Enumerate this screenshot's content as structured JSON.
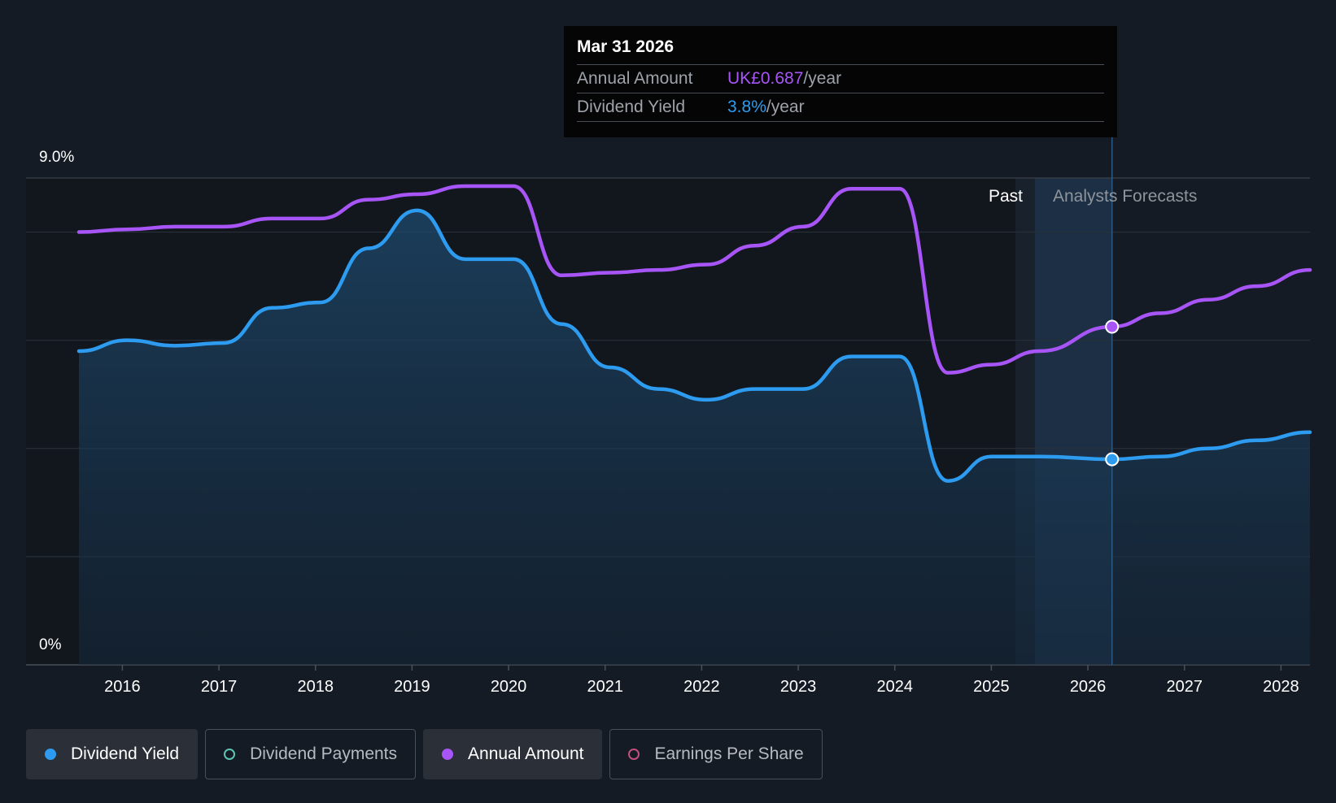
{
  "tooltip": {
    "date": "Mar 31 2026",
    "rows": [
      {
        "label": "Annual Amount",
        "value": "UK£0.687",
        "suffix": "/year",
        "color": "#a855f7"
      },
      {
        "label": "Dividend Yield",
        "value": "3.8%",
        "suffix": "/year",
        "color": "#2d9cf0"
      }
    ]
  },
  "zones": {
    "past": "Past",
    "forecast": "Analysts Forecasts"
  },
  "legend": [
    {
      "label": "Dividend Yield",
      "color": "#2d9cf0",
      "active": true,
      "filled": true
    },
    {
      "label": "Dividend Payments",
      "color": "#5ec4b6",
      "active": false,
      "filled": false
    },
    {
      "label": "Annual Amount",
      "color": "#a855f7",
      "active": true,
      "filled": true
    },
    {
      "label": "Earnings Per Share",
      "color": "#c2507e",
      "active": false,
      "filled": false
    }
  ],
  "chart_data": {
    "type": "line",
    "y_axis_labels": [
      "9.0%",
      "0%"
    ],
    "ylim": [
      0,
      9.0
    ],
    "xlim": [
      2015.55,
      2028.3
    ],
    "x_ticks": [
      "2016",
      "2017",
      "2018",
      "2019",
      "2020",
      "2021",
      "2022",
      "2023",
      "2024",
      "2025",
      "2026",
      "2027",
      "2028"
    ],
    "grid": true,
    "past_end": 2025.25,
    "forecast_start": 2025.45,
    "tooltip_x": 2026.25,
    "series": [
      {
        "name": "Dividend Yield",
        "color": "#2d9cf0",
        "fill": true,
        "x": [
          2015.55,
          2016.05,
          2016.55,
          2017.05,
          2017.55,
          2018.05,
          2018.55,
          2019.05,
          2019.55,
          2020.05,
          2020.55,
          2021.05,
          2021.55,
          2022.05,
          2022.55,
          2023.05,
          2023.55,
          2024.05,
          2024.55,
          2025.0,
          2025.5,
          2026.25,
          2026.75,
          2027.25,
          2027.75,
          2028.3
        ],
        "values": [
          5.8,
          6.0,
          5.9,
          5.95,
          6.6,
          6.7,
          7.7,
          8.4,
          7.5,
          7.5,
          6.3,
          5.5,
          5.1,
          4.9,
          5.1,
          5.1,
          5.7,
          5.7,
          3.4,
          3.85,
          3.85,
          3.8,
          3.85,
          4.0,
          4.15,
          4.3
        ]
      },
      {
        "name": "Annual Amount",
        "color": "#a855f7",
        "fill": false,
        "x": [
          2015.55,
          2016.05,
          2016.55,
          2017.05,
          2017.55,
          2018.05,
          2018.55,
          2019.05,
          2019.55,
          2020.05,
          2020.55,
          2021.05,
          2021.55,
          2022.05,
          2022.55,
          2023.05,
          2023.55,
          2024.05,
          2024.55,
          2025.0,
          2025.5,
          2026.25,
          2026.75,
          2027.25,
          2027.75,
          2028.3
        ],
        "values": [
          8.0,
          8.05,
          8.1,
          8.1,
          8.25,
          8.25,
          8.6,
          8.7,
          8.85,
          8.85,
          7.2,
          7.25,
          7.3,
          7.4,
          7.75,
          8.1,
          8.8,
          8.8,
          5.4,
          5.55,
          5.8,
          6.25,
          6.5,
          6.75,
          7.0,
          7.3
        ]
      }
    ]
  }
}
